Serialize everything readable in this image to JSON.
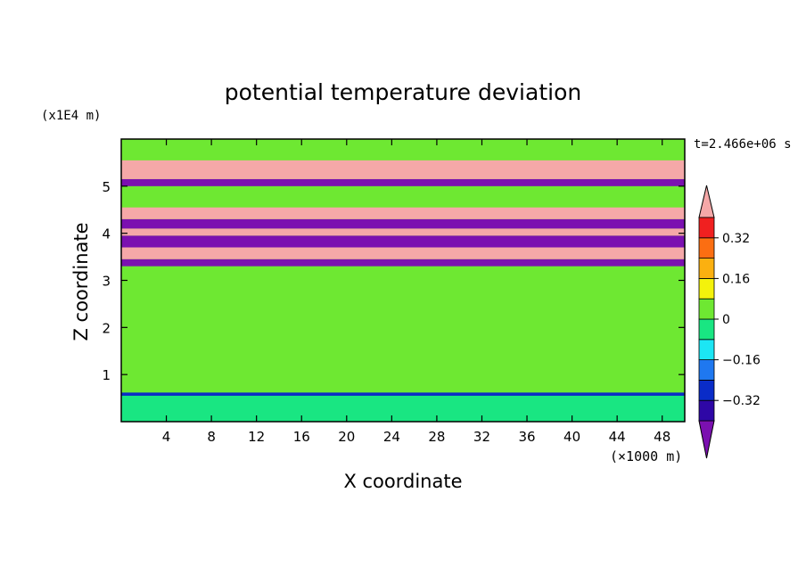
{
  "chart_data": {
    "type": "heatmap",
    "title": "potential temperature deviation",
    "xlabel": "X coordinate",
    "ylabel": "Z coordinate",
    "x_unit": "(×1000 m)",
    "y_unit": "(x1E4 m)",
    "time_label": "t=2.466e+06 s",
    "xlim": [
      0,
      50
    ],
    "ylim": [
      0,
      6
    ],
    "x_ticks": [
      "4",
      "8",
      "12",
      "16",
      "20",
      "24",
      "28",
      "32",
      "36",
      "40",
      "44",
      "48"
    ],
    "y_ticks": [
      "1",
      "2",
      "3",
      "4",
      "5"
    ],
    "colorbar": {
      "levels": [
        -0.48,
        -0.4,
        -0.32,
        -0.24,
        -0.16,
        -0.08,
        0,
        0.08,
        0.16,
        0.24,
        0.32,
        0.4
      ],
      "tick_labels": [
        "0.32",
        "0.16",
        "0",
        "−0.16",
        "−0.32"
      ],
      "colors": [
        "#7b10b0",
        "#2e07a6",
        "#0a2cc8",
        "#1f78f0",
        "#1ce6f4",
        "#19e682",
        "#6ee832",
        "#f4f20c",
        "#fbb010",
        "#fb6e12",
        "#f02020",
        "#f5a8a8"
      ],
      "extend": "both"
    },
    "bands": [
      {
        "z0": 0.0,
        "z1": 0.55,
        "level": -0.08,
        "note": "near-surface, cyan/green mix"
      },
      {
        "z0": 0.55,
        "z1": 0.62,
        "level": -0.32,
        "note": "thin blue streak"
      },
      {
        "z0": 0.62,
        "z1": 3.3,
        "level": 0.0,
        "note": "green body"
      },
      {
        "z0": 3.3,
        "z1": 3.45,
        "level": -0.48
      },
      {
        "z0": 3.45,
        "z1": 3.7,
        "level": 0.48
      },
      {
        "z0": 3.7,
        "z1": 3.95,
        "level": -0.48
      },
      {
        "z0": 3.95,
        "z1": 4.1,
        "level": 0.48
      },
      {
        "z0": 4.1,
        "z1": 4.3,
        "level": -0.48
      },
      {
        "z0": 4.3,
        "z1": 4.55,
        "level": 0.48
      },
      {
        "z0": 4.55,
        "z1": 5.0,
        "level": 0.0
      },
      {
        "z0": 5.0,
        "z1": 5.15,
        "level": -0.48
      },
      {
        "z0": 5.15,
        "z1": 5.55,
        "level": 0.48
      },
      {
        "z0": 5.55,
        "z1": 6.0,
        "level": 0.0
      }
    ]
  }
}
